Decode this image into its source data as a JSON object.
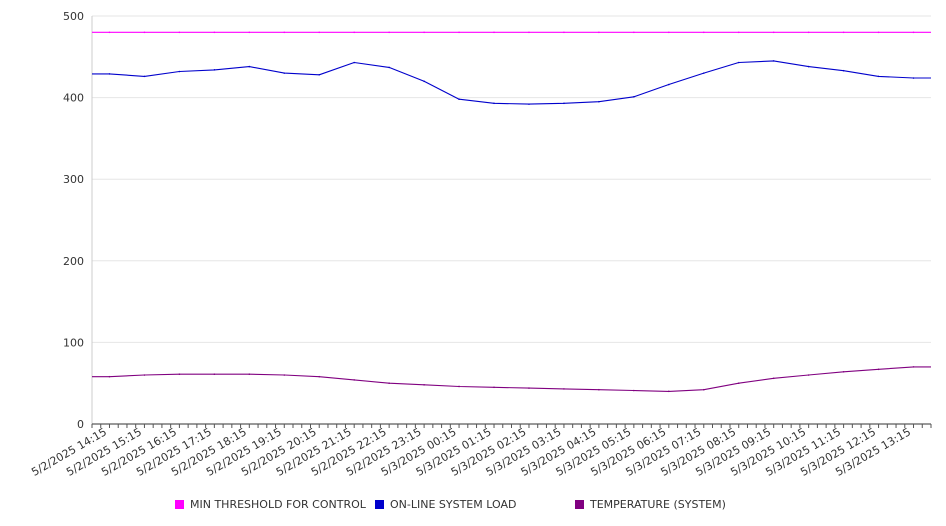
{
  "chart_data": {
    "type": "line",
    "title": "",
    "xlabel": "",
    "ylabel": "",
    "ylim": [
      0,
      500
    ],
    "yticks": [
      "0",
      "100",
      "200",
      "300",
      "400",
      "500"
    ],
    "grid": true,
    "legend_position": "bottom",
    "categories": [
      "5/2/2025 14:15",
      "5/2/2025 15:15",
      "5/2/2025 16:15",
      "5/2/2025 17:15",
      "5/2/2025 18:15",
      "5/2/2025 19:15",
      "5/2/2025 20:15",
      "5/2/2025 21:15",
      "5/2/2025 22:15",
      "5/2/2025 23:15",
      "5/3/2025 00:15",
      "5/3/2025 01:15",
      "5/3/2025 02:15",
      "5/3/2025 03:15",
      "5/3/2025 04:15",
      "5/3/2025 05:15",
      "5/3/2025 06:15",
      "5/3/2025 07:15",
      "5/3/2025 08:15",
      "5/3/2025 09:15",
      "5/3/2025 10:15",
      "5/3/2025 11:15",
      "5/3/2025 12:15",
      "5/3/2025 13:15"
    ],
    "series": [
      {
        "name": "MIN THRESHOLD FOR CONTROL",
        "color": "#ff00ff",
        "values": [
          480,
          480,
          480,
          480,
          480,
          480,
          480,
          480,
          480,
          480,
          480,
          480,
          480,
          480,
          480,
          480,
          480,
          480,
          480,
          480,
          480,
          480,
          480,
          480
        ]
      },
      {
        "name": "ON-LINE SYSTEM LOAD",
        "color": "#0000cc",
        "values": [
          429,
          426,
          432,
          434,
          438,
          430,
          428,
          443,
          437,
          420,
          398,
          393,
          392,
          393,
          395,
          401,
          416,
          430,
          443,
          445,
          438,
          433,
          426,
          424
        ]
      },
      {
        "name": "TEMPERATURE (SYSTEM)",
        "color": "#800080",
        "values": [
          58,
          60,
          61,
          61,
          61,
          60,
          58,
          54,
          50,
          48,
          46,
          45,
          44,
          43,
          42,
          41,
          40,
          42,
          50,
          56,
          60,
          64,
          67,
          70
        ]
      }
    ]
  }
}
